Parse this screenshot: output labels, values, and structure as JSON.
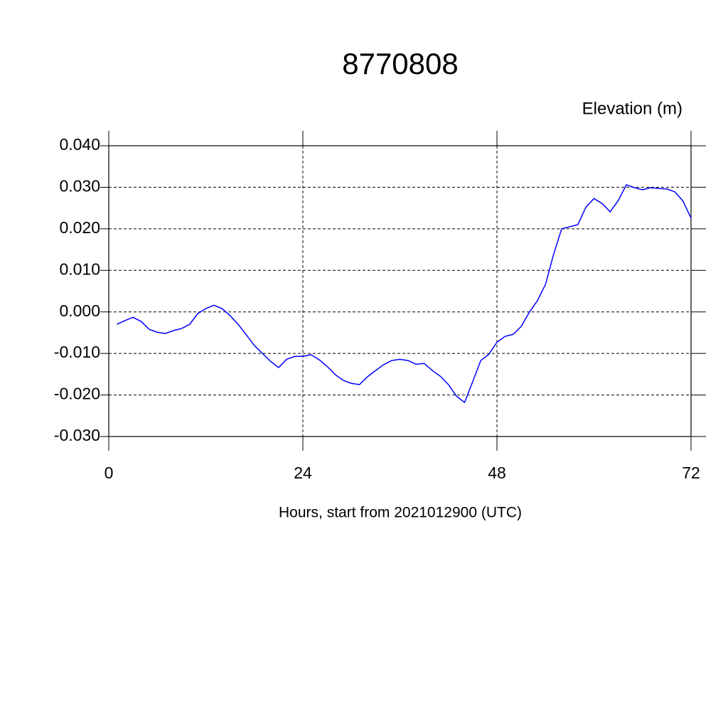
{
  "chart_data": {
    "type": "line",
    "title": "8770808",
    "y_label": "Elevation (m)",
    "x_label": "Hours, start from 2021012900 (UTC)",
    "x": [
      1,
      2,
      3,
      4,
      5,
      6,
      7,
      8,
      9,
      10,
      11,
      12,
      13,
      14,
      15,
      16,
      17,
      18,
      19,
      20,
      21,
      22,
      23,
      24,
      25,
      26,
      27,
      28,
      29,
      30,
      31,
      32,
      33,
      34,
      35,
      36,
      37,
      38,
      39,
      40,
      41,
      42,
      43,
      44,
      45,
      46,
      47,
      48,
      49,
      50,
      51,
      52,
      53,
      54,
      55,
      56,
      57,
      58,
      59,
      60,
      61,
      62,
      63,
      64,
      65,
      66,
      67,
      68,
      69,
      70,
      71,
      72
    ],
    "series": [
      {
        "color": "#0000ff",
        "values": [
          -0.003,
          -0.0021,
          -0.0013,
          -0.0023,
          -0.0042,
          -0.0049,
          -0.0052,
          -0.0045,
          -0.004,
          -0.003,
          -0.0004,
          0.0008,
          0.0016,
          0.0008,
          -0.0009,
          -0.003,
          -0.0055,
          -0.0081,
          -0.01,
          -0.0119,
          -0.0134,
          -0.0114,
          -0.0107,
          -0.0107,
          -0.0103,
          -0.0115,
          -0.0131,
          -0.0151,
          -0.0165,
          -0.0172,
          -0.0175,
          -0.0156,
          -0.0141,
          -0.0127,
          -0.0117,
          -0.0114,
          -0.0117,
          -0.0126,
          -0.0124,
          -0.0141,
          -0.0155,
          -0.0175,
          -0.0203,
          -0.0218,
          -0.0168,
          -0.0117,
          -0.0102,
          -0.0073,
          -0.0059,
          -0.0054,
          -0.0035,
          -0.0001,
          0.0027,
          0.0066,
          0.0138,
          0.02,
          0.0205,
          0.021,
          0.0252,
          0.0273,
          0.0261,
          0.0241,
          0.0268,
          0.0306,
          0.0299,
          0.0294,
          0.0299,
          0.0297,
          0.0296,
          0.0289,
          0.0267,
          0.0226
        ]
      }
    ],
    "xlim": [
      0,
      72
    ],
    "xticks": [
      0,
      24,
      48,
      72
    ],
    "ylim": [
      -0.03,
      0.04
    ],
    "yticks": [
      {
        "value": -0.03,
        "label": "-0.030"
      },
      {
        "value": -0.02,
        "label": "-0.020"
      },
      {
        "value": -0.01,
        "label": "-0.010"
      },
      {
        "value": 0,
        "label": "0.000"
      },
      {
        "value": 0.01,
        "label": "0.010"
      },
      {
        "value": 0.02,
        "label": "0.020"
      },
      {
        "value": 0.03,
        "label": "0.030"
      },
      {
        "value": 0.04,
        "label": "0.040"
      }
    ],
    "grid": true
  }
}
